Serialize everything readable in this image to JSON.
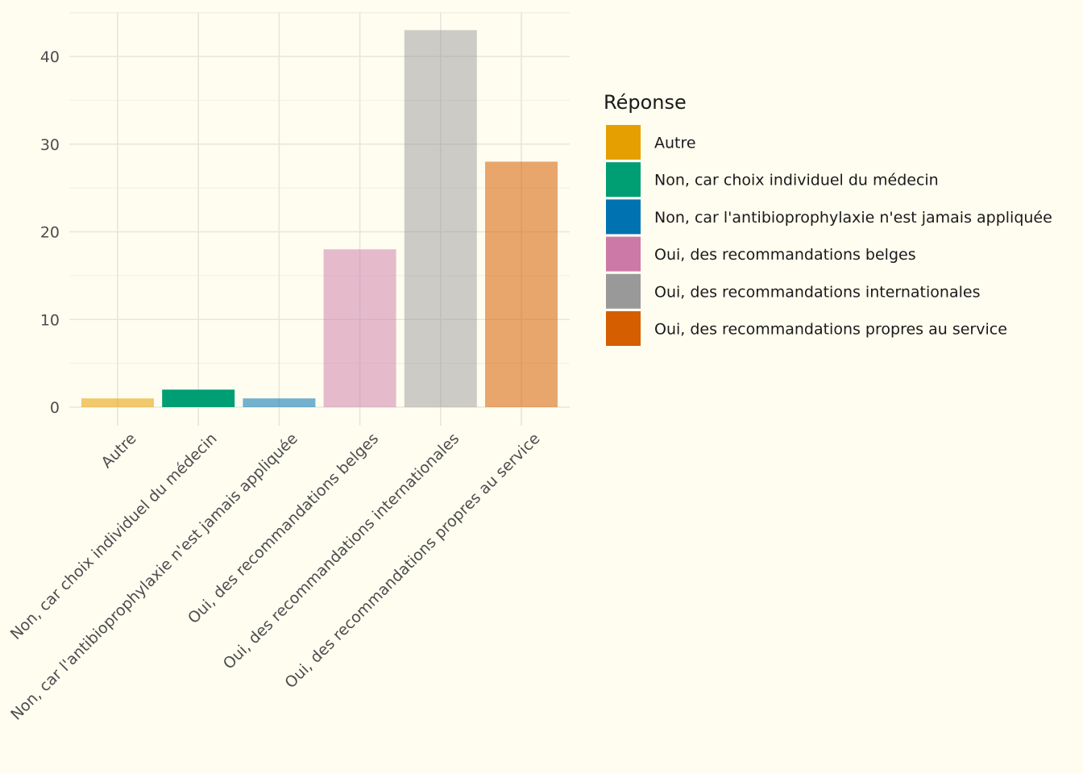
{
  "chart_data": {
    "type": "bar",
    "categories": [
      "Autre",
      "Non, car choix individuel du médecin",
      "Non, car l'antibioprophylaxie n'est jamais appliquée",
      "Oui, des recommandations belges",
      "Oui, des recommandations internationales",
      "Oui, des recommandations propres au service"
    ],
    "values": [
      1,
      2,
      1,
      18,
      43,
      28
    ],
    "colors": [
      "#E69F00",
      "#009E73",
      "#0072B2",
      "#CC79A7",
      "#999999",
      "#D55E00"
    ],
    "bar_opacity": [
      0.55,
      1.0,
      0.55,
      0.5,
      0.5,
      0.55
    ],
    "ylim": [
      0,
      45
    ],
    "yticks": [
      0,
      10,
      20,
      30,
      40
    ],
    "grid": true,
    "legend_position": "right",
    "legend": {
      "title": "Réponse",
      "entries": [
        "Autre",
        "Non, car choix individuel du médecin",
        "Non, car l'antibioprophylaxie n'est jamais appliquée",
        "Oui, des recommandations belges",
        "Oui, des recommandations internationales",
        "Oui, des recommandations propres au service"
      ]
    },
    "title": "",
    "xlabel": "",
    "ylabel": ""
  }
}
